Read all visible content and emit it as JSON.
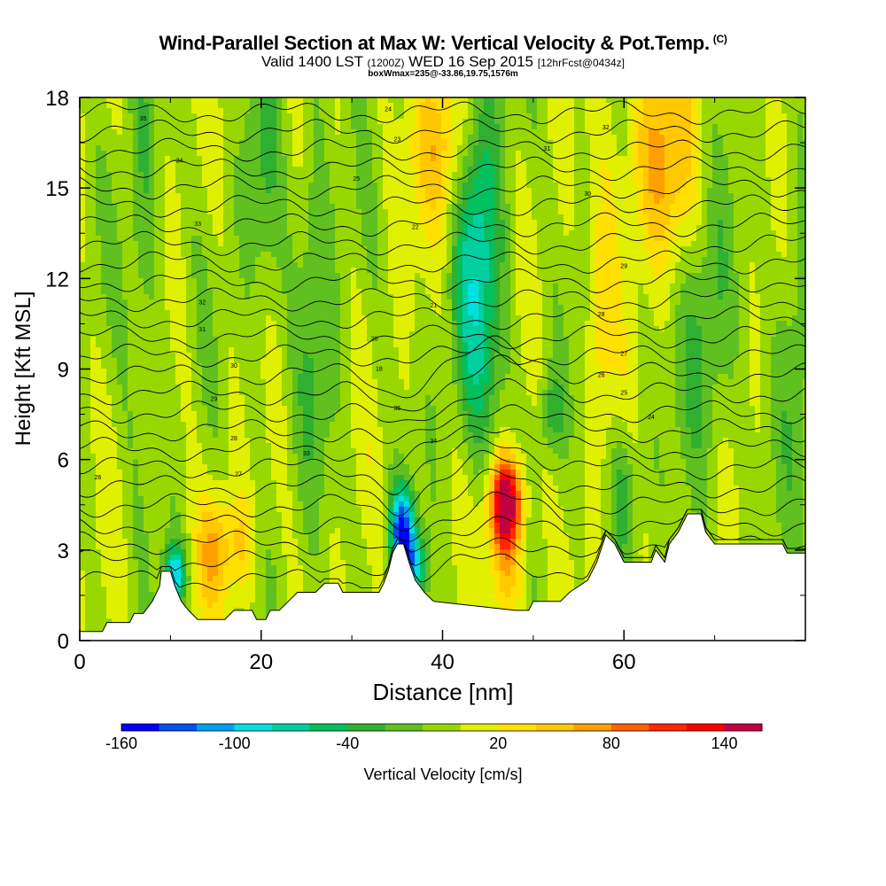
{
  "header": {
    "title": "Wind-Parallel Section at Max W: Vertical Velocity & Pot.Temp.",
    "title_tag": "(C)",
    "valid_prefix": "Valid 1400 LST",
    "valid_utc": "(1200Z)",
    "valid_date": "WED 16 Sep 2015",
    "valid_fcst": "[12hrFcst@0434z]",
    "box_info": "boxWmax=235@-33.86,19.75,1576m"
  },
  "chart_data": {
    "type": "heatmap",
    "xlabel": "Distance [nm]",
    "ylabel": "Height [Kft MSL]",
    "xlim": [
      0,
      80
    ],
    "ylim": [
      0,
      18
    ],
    "xticks": [
      0,
      20,
      40,
      60
    ],
    "yticks": [
      0,
      3,
      6,
      9,
      12,
      15,
      18
    ],
    "colorbar": {
      "label": "Vertical Velocity [cm/s]",
      "tick_labels": [
        "-160",
        "-100",
        "-40",
        "20",
        "80",
        "140"
      ],
      "tick_values": [
        -160,
        -100,
        -40,
        20,
        80,
        140
      ],
      "range": [
        -160,
        160
      ],
      "colors": [
        "#0000ff",
        "#0050f0",
        "#00a0f0",
        "#00e0e0",
        "#00d0a0",
        "#00c060",
        "#30b030",
        "#60c020",
        "#98d800",
        "#e0f000",
        "#ffe000",
        "#ffc800",
        "#ffa000",
        "#ff6000",
        "#ff2800",
        "#ff0000",
        "#c00040"
      ]
    },
    "terrain_kft": [
      [
        0,
        0.3
      ],
      [
        2.5,
        0.3
      ],
      [
        3,
        0.6
      ],
      [
        5.5,
        0.6
      ],
      [
        6,
        0.9
      ],
      [
        7,
        0.9
      ],
      [
        8,
        1.3
      ],
      [
        8.8,
        1.8
      ],
      [
        9,
        2.3
      ],
      [
        10,
        2.3
      ],
      [
        10.5,
        1.8
      ],
      [
        11.2,
        1.3
      ],
      [
        12,
        1.0
      ],
      [
        13,
        0.7
      ],
      [
        16,
        0.7
      ],
      [
        17,
        1.0
      ],
      [
        19,
        1.0
      ],
      [
        19.5,
        0.7
      ],
      [
        20.5,
        0.7
      ],
      [
        21,
        1.0
      ],
      [
        22,
        1.0
      ],
      [
        23,
        1.3
      ],
      [
        24,
        1.6
      ],
      [
        26,
        1.6
      ],
      [
        27,
        1.9
      ],
      [
        28.5,
        1.9
      ],
      [
        29,
        1.6
      ],
      [
        33,
        1.6
      ],
      [
        33.5,
        1.9
      ],
      [
        34,
        2.3
      ],
      [
        34.5,
        2.9
      ],
      [
        35,
        3.2
      ],
      [
        35.7,
        3.2
      ],
      [
        36.3,
        2.6
      ],
      [
        37,
        2.0
      ],
      [
        38,
        1.6
      ],
      [
        39,
        1.3
      ],
      [
        48,
        1.0
      ],
      [
        49.5,
        1.0
      ],
      [
        50,
        1.3
      ],
      [
        53,
        1.3
      ],
      [
        54,
        1.6
      ],
      [
        56,
        2.0
      ],
      [
        57,
        2.6
      ],
      [
        58,
        3.5
      ],
      [
        59,
        3.2
      ],
      [
        60,
        2.6
      ],
      [
        63,
        2.6
      ],
      [
        63.5,
        3.0
      ],
      [
        64.5,
        2.6
      ],
      [
        65,
        3.2
      ],
      [
        66,
        3.6
      ],
      [
        67,
        4.2
      ],
      [
        68.5,
        4.2
      ],
      [
        69,
        3.6
      ],
      [
        70,
        3.2
      ],
      [
        77.5,
        3.2
      ],
      [
        78,
        2.9
      ],
      [
        80,
        2.9
      ]
    ],
    "theta_labels": [
      "35",
      "34",
      "33",
      "32",
      "31",
      "30",
      "29",
      "28",
      "27",
      "26",
      "25",
      "24",
      "23",
      "22",
      "21",
      "20",
      "18"
    ],
    "max_w_note": "boxWmax=235"
  }
}
